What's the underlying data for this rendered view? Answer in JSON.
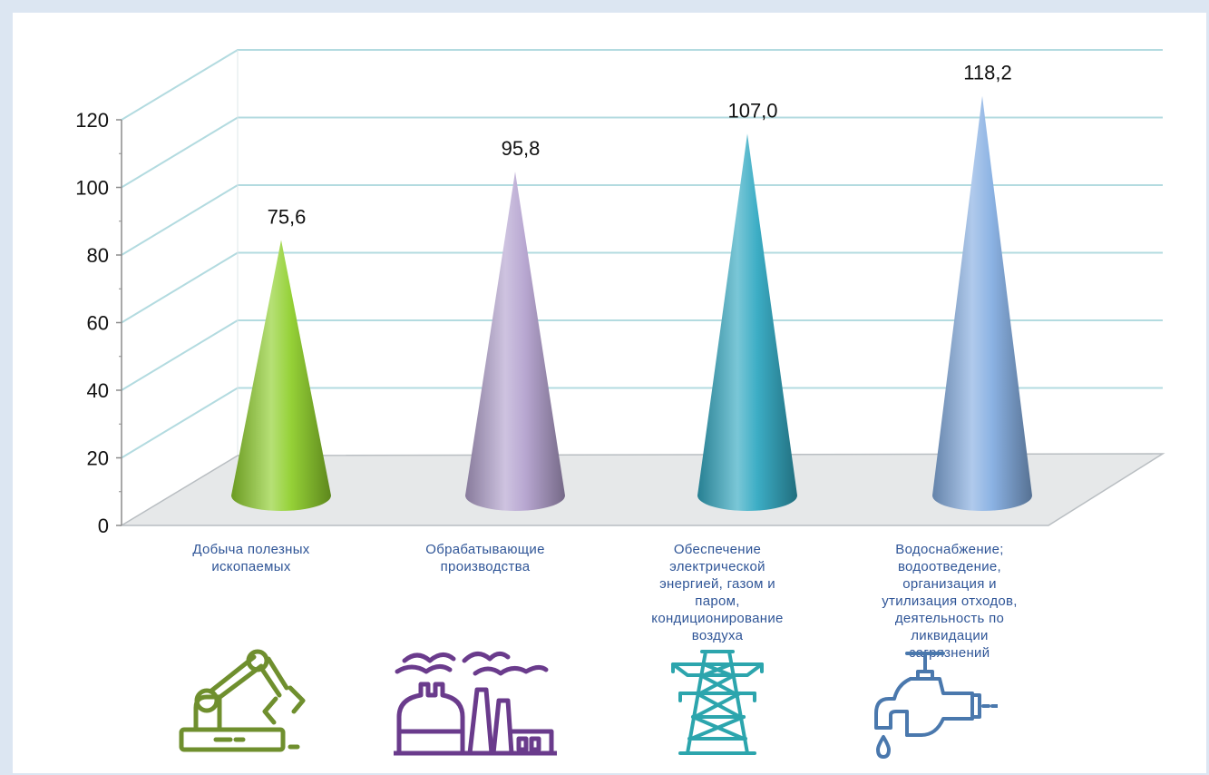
{
  "chart_data": {
    "type": "bar",
    "style": "3d-cone",
    "categories": [
      "Добыча полезных\nископаемых",
      "Обрабатывающие\nпроизводства",
      "Обеспечение\nэлектрической\nэнергией, газом и\nпаром,\nкондиционирование\nвоздуха",
      "Водоснабжение;\nводоотведение,\nорганизация и\nутилизация отходов,\nдеятельность по\nликвидации\nзагрязнений"
    ],
    "values": [
      75.6,
      95.8,
      107.0,
      118.2
    ],
    "data_labels": [
      "75,6",
      "95,8",
      "107,0",
      "118,2"
    ],
    "yticks": [
      "0",
      "20",
      "40",
      "60",
      "80",
      "100",
      "120"
    ],
    "ylim": [
      0,
      120
    ],
    "grid": true,
    "legend": "none",
    "colors": [
      "#8fcf2c",
      "#b4a2cf",
      "#32a9c2",
      "#85aee2"
    ],
    "icons": [
      "robot-arm-icon",
      "factory-icon",
      "power-tower-icon",
      "water-tap-icon"
    ],
    "icon_colors": [
      "#6f8f2e",
      "#6a3b8c",
      "#2ca5ad",
      "#4a78ad"
    ]
  }
}
